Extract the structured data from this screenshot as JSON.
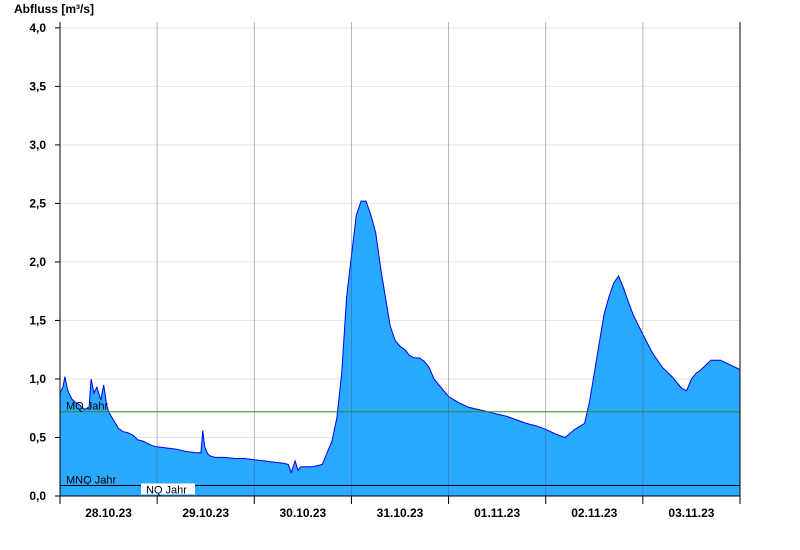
{
  "chart_data": {
    "type": "area",
    "title": "",
    "ylabel": "Abfluss [m³/s]",
    "xlabel": "",
    "ylim": [
      0,
      4.05
    ],
    "xlim": [
      0,
      7.0
    ],
    "y_ticks": [
      {
        "value": 0.0,
        "label": "0,0"
      },
      {
        "value": 0.5,
        "label": "0,5"
      },
      {
        "value": 1.0,
        "label": "1,0"
      },
      {
        "value": 1.5,
        "label": "1,5"
      },
      {
        "value": 2.0,
        "label": "2,0"
      },
      {
        "value": 2.5,
        "label": "2,5"
      },
      {
        "value": 3.0,
        "label": "3,0"
      },
      {
        "value": 3.5,
        "label": "3,5"
      },
      {
        "value": 4.0,
        "label": "4,0"
      }
    ],
    "day_boundaries": [
      1,
      2,
      3,
      4,
      5,
      6
    ],
    "x_categories": [
      {
        "pos": 0.5,
        "label": "28.10.23"
      },
      {
        "pos": 1.5,
        "label": "29.10.23"
      },
      {
        "pos": 2.5,
        "label": "30.10.23"
      },
      {
        "pos": 3.5,
        "label": "31.10.23"
      },
      {
        "pos": 4.5,
        "label": "01.11.23"
      },
      {
        "pos": 5.5,
        "label": "02.11.23"
      },
      {
        "pos": 6.5,
        "label": "03.11.23"
      }
    ],
    "grid": true,
    "fill_color": "#29a9ff",
    "line_color": "#0000ee",
    "reference_lines": [
      {
        "name": "MQ Jahr",
        "value": 0.72,
        "color": "#2a8a2a"
      },
      {
        "name": "MNQ Jahr",
        "value": 0.09,
        "color": "#000000"
      },
      {
        "name": "NQ Jahr",
        "value": 0.09,
        "color": "#000000"
      }
    ],
    "series": [
      {
        "x": [
          0.0,
          0.03,
          0.05,
          0.08,
          0.12,
          0.16,
          0.2,
          0.25,
          0.3,
          0.32,
          0.35,
          0.38,
          0.42,
          0.45,
          0.48,
          0.5,
          0.55,
          0.6,
          0.65,
          0.7,
          0.75,
          0.8,
          0.85,
          0.9,
          0.95,
          1.0,
          1.1,
          1.2,
          1.3,
          1.4,
          1.45,
          1.47,
          1.49,
          1.52,
          1.55,
          1.6,
          1.7,
          1.8,
          1.9,
          2.0,
          2.1,
          2.2,
          2.3,
          2.35,
          2.38,
          2.42,
          2.45,
          2.48,
          2.5,
          2.6,
          2.7,
          2.8,
          2.85,
          2.9,
          2.95,
          3.0,
          3.05,
          3.1,
          3.15,
          3.2,
          3.25,
          3.3,
          3.35,
          3.38,
          3.4,
          3.45,
          3.5,
          3.55,
          3.6,
          3.65,
          3.7,
          3.75,
          3.8,
          3.85,
          3.9,
          3.95,
          4.0,
          4.1,
          4.2,
          4.3,
          4.4,
          4.5,
          4.6,
          4.7,
          4.8,
          4.9,
          5.0,
          5.1,
          5.2,
          5.3,
          5.4,
          5.45,
          5.5,
          5.55,
          5.6,
          5.65,
          5.7,
          5.75,
          5.8,
          5.85,
          5.9,
          6.0,
          6.1,
          6.2,
          6.3,
          6.35,
          6.4,
          6.45,
          6.5,
          6.55,
          6.6,
          6.65,
          6.7,
          6.8,
          6.9,
          7.0
        ],
        "values": [
          0.88,
          0.93,
          1.02,
          0.9,
          0.83,
          0.8,
          0.78,
          0.74,
          0.76,
          1.0,
          0.88,
          0.93,
          0.82,
          0.95,
          0.78,
          0.72,
          0.65,
          0.58,
          0.55,
          0.54,
          0.52,
          0.48,
          0.47,
          0.45,
          0.43,
          0.42,
          0.41,
          0.4,
          0.38,
          0.37,
          0.37,
          0.56,
          0.42,
          0.36,
          0.34,
          0.33,
          0.33,
          0.32,
          0.32,
          0.31,
          0.3,
          0.29,
          0.28,
          0.27,
          0.2,
          0.3,
          0.22,
          0.25,
          0.25,
          0.25,
          0.27,
          0.47,
          0.67,
          1.05,
          1.7,
          2.05,
          2.4,
          2.52,
          2.52,
          2.4,
          2.25,
          1.95,
          1.7,
          1.55,
          1.45,
          1.33,
          1.28,
          1.25,
          1.2,
          1.18,
          1.18,
          1.15,
          1.1,
          1.0,
          0.95,
          0.9,
          0.85,
          0.8,
          0.76,
          0.74,
          0.72,
          0.7,
          0.68,
          0.65,
          0.62,
          0.6,
          0.57,
          0.53,
          0.5,
          0.57,
          0.62,
          0.8,
          1.05,
          1.3,
          1.55,
          1.7,
          1.82,
          1.88,
          1.78,
          1.66,
          1.55,
          1.38,
          1.22,
          1.1,
          1.02,
          0.97,
          0.92,
          0.9,
          1.0,
          1.05,
          1.08,
          1.12,
          1.16,
          1.16,
          1.12,
          1.08
        ]
      }
    ]
  }
}
